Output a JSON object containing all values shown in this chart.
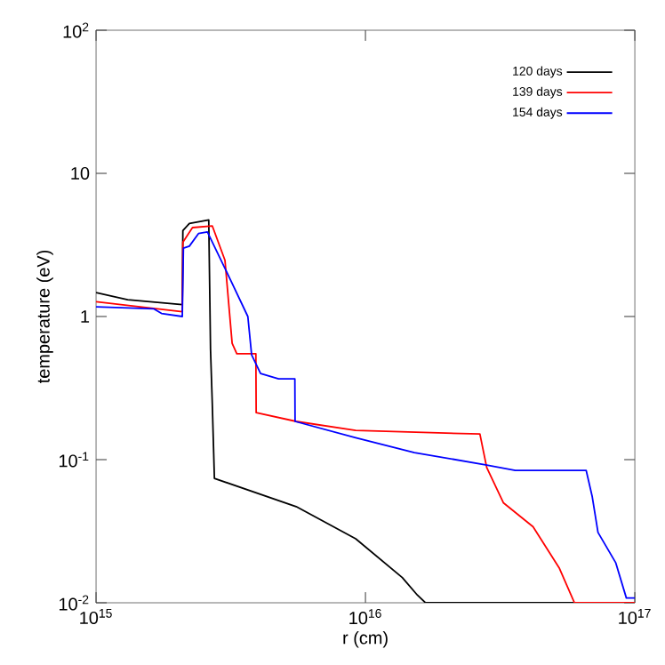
{
  "chart_data": {
    "type": "line",
    "xlabel": "r (cm)",
    "ylabel": "temperature (eV)",
    "log": "xy",
    "legend": "top right",
    "line_style": "solid",
    "xlim": [
      1000000000000000.0,
      1e+17
    ],
    "ylim": [
      0.01,
      100
    ],
    "xticks": [
      {
        "value": 1000000000000000.0,
        "label": "10$^{15}$"
      },
      {
        "value": 1e+16,
        "label": "10$^{16}$"
      },
      {
        "value": 1e+17,
        "label": "10$^{17}$"
      }
    ],
    "yticks": [
      {
        "value": 0.01,
        "label": "10$^{-2}$"
      },
      {
        "value": 0.1,
        "label": "10$^{-1}$"
      },
      1,
      10,
      {
        "value": 100,
        "label": "10$^{2}$"
      }
    ],
    "series": [
      {
        "name": "120 days",
        "color": "#000000",
        "x": [
          1000000000000000.0,
          1310000000000000.0,
          2090000000000000.0,
          2100000000000000.0,
          2220000000000000.0,
          2620000000000000.0,
          2660000000000000.0,
          2700000000000000.0,
          2750000000000000.0,
          5530000000000000.0,
          9200000000000000.0,
          1.37e+16,
          1.56e+16,
          1.67e+16,
          1e+17
        ],
        "values": [
          1.47,
          1.31,
          1.21,
          3.98,
          4.47,
          4.73,
          0.59,
          0.25,
          0.074,
          0.047,
          0.028,
          0.015,
          0.0113,
          0.01,
          0.01
        ]
      },
      {
        "name": "139 days",
        "color": "#ff0000",
        "x": [
          1000000000000000.0,
          2090000000000000.0,
          2100000000000000.0,
          2280000000000000.0,
          2700000000000000.0,
          3010000000000000.0,
          3200000000000000.0,
          3330000000000000.0,
          3920000000000000.0,
          3930000000000000.0,
          5530000000000000.0,
          9200000000000000.0,
          2.66e+16,
          2.82e+16,
          3.25e+16,
          4.19e+16,
          5.25e+16,
          5.97e+16,
          1e+17
        ],
        "values": [
          1.27,
          1.08,
          3.3,
          4.18,
          4.3,
          2.47,
          0.65,
          0.55,
          0.55,
          0.213,
          0.185,
          0.16,
          0.151,
          0.088,
          0.05,
          0.034,
          0.0174,
          0.01,
          0.01
        ]
      },
      {
        "name": "154 days",
        "color": "#0000ff",
        "x": [
          1000000000000000.0,
          1640000000000000.0,
          1750000000000000.0,
          2090000000000000.0,
          2110000000000000.0,
          2220000000000000.0,
          2400000000000000.0,
          2590000000000000.0,
          3170000000000000.0,
          3660000000000000.0,
          3780000000000000.0,
          4080000000000000.0,
          4760000000000000.0,
          5470000000000000.0,
          5480000000000000.0,
          9200000000000000.0,
          1.52e+16,
          2.79e+16,
          3.6e+16,
          6.6e+16,
          6.95e+16,
          7.3e+16,
          8.5e+16,
          9.3e+16,
          1e+17
        ],
        "values": [
          1.17,
          1.13,
          1.05,
          1.0,
          3.0,
          3.1,
          3.8,
          3.9,
          1.77,
          1.0,
          0.54,
          0.4,
          0.367,
          0.367,
          0.185,
          0.142,
          0.112,
          0.092,
          0.084,
          0.084,
          0.055,
          0.031,
          0.019,
          0.0108,
          0.0108
        ]
      }
    ]
  }
}
